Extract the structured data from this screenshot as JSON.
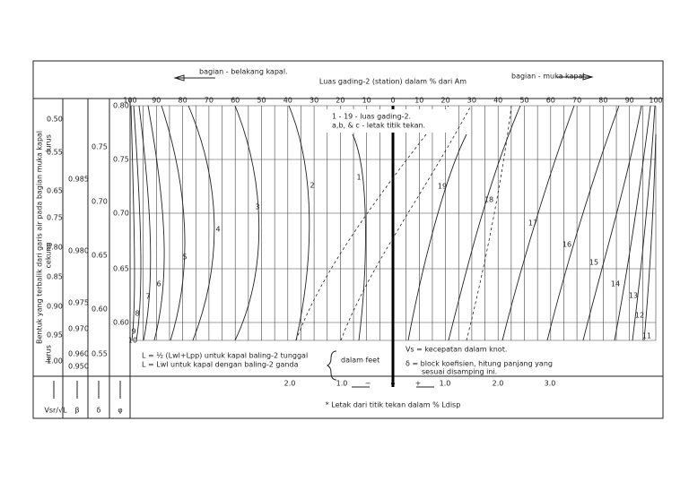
{
  "header": {
    "aft": "bagian - belakang kapal.",
    "title": "Luas gading-2 (station) dalam % dari Am",
    "fore": "bagian - muka kapal."
  },
  "top_scale": [
    "100",
    "90",
    "80",
    "70",
    "60",
    "50",
    "40",
    "30",
    "20",
    "10",
    "0",
    "10",
    "20",
    "30",
    "40",
    "50",
    "60",
    "70",
    "80",
    "90",
    "100"
  ],
  "legend": [
    "1 - 19  - luas gading-2.",
    "a,b, & c - letak titik tekan."
  ],
  "left_caption": "Bentuk yang terbalik dari garis air pada bagian muka kapal",
  "left_notes": [
    "lurus",
    "cekung",
    "lurus"
  ],
  "col_speed": [
    "0.50",
    "0.55",
    "0.65",
    "0.75",
    "0.80",
    "0.85",
    "0.90",
    "0.95",
    "1.00"
  ],
  "col_beta": [
    "0.985",
    "0.980",
    "0.975",
    "0.970",
    "0.960",
    "0.950"
  ],
  "col_delta": [
    "0.75",
    "0.70",
    "0.65",
    "0.60",
    "0.55"
  ],
  "col_phi": [
    "0.80",
    "0.75",
    "0.70",
    "0.65",
    "0.60"
  ],
  "col_titles": [
    "Vsr/√L",
    "β",
    "δ",
    "φ"
  ],
  "curve_labels": [
    "1",
    "2",
    "3",
    "4",
    "5",
    "6",
    "7",
    "8",
    "9",
    "10",
    "11",
    "12",
    "13",
    "14",
    "15",
    "16",
    "17",
    "18",
    "19"
  ],
  "notes": [
    "L = ½ (Lwl+Lpp) untuk kapal baling-2 tunggal",
    "L = Lwl untuk kapal dengan baling-2 ganda",
    "dalam feet",
    "Vs = kecepatan dalam knot.",
    "δ  = block koefisien, hitung panjang yang",
    "sesuai disamping ini."
  ],
  "bottom_scale": [
    "2.0",
    "1.0",
    "−",
    "o",
    "+",
    "1.0",
    "2.0",
    "3.0"
  ],
  "caption": "* Letak dari titik tekan dalam % Ldisp"
}
